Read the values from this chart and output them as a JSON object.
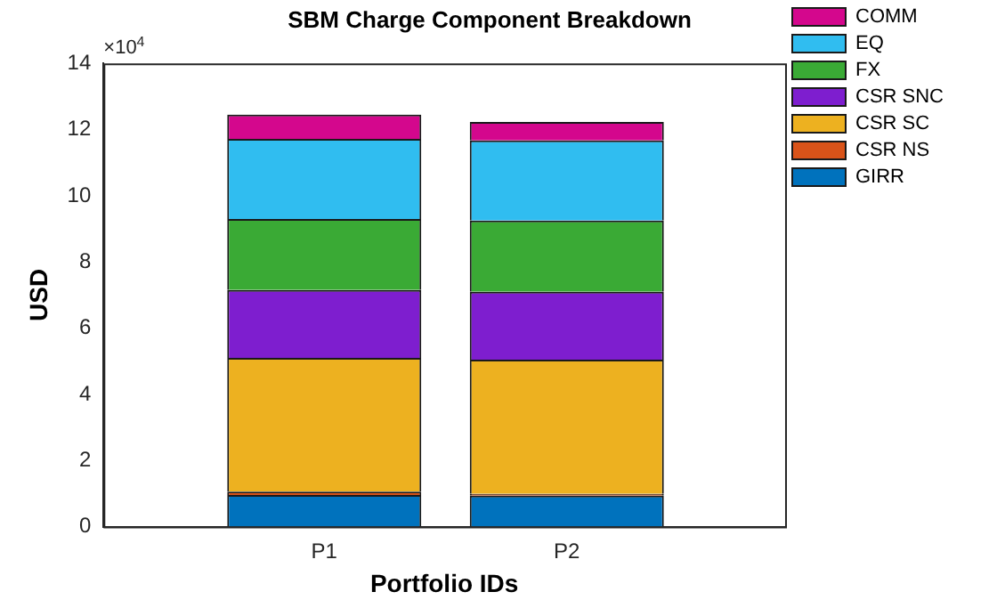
{
  "chart_data": {
    "type": "bar",
    "title": "SBM Charge Component Breakdown",
    "xlabel": "Portfolio IDs",
    "ylabel": "USD",
    "categories": [
      "P1",
      "P2"
    ],
    "stacked": true,
    "series": [
      {
        "name": "GIRR",
        "color": "#0072bd",
        "values": [
          0.96,
          0.94
        ]
      },
      {
        "name": "CSR NS",
        "color": "#d95319",
        "values": [
          0.1,
          0.05
        ]
      },
      {
        "name": "CSR SC",
        "color": "#edb120",
        "values": [
          4.04,
          4.06
        ]
      },
      {
        "name": "CSR SNC",
        "color": "#7e1ecf",
        "values": [
          2.05,
          2.05
        ]
      },
      {
        "name": "FX",
        "color": "#3aaa35",
        "values": [
          2.15,
          2.15
        ]
      },
      {
        "name": "EQ",
        "color": "#30bdf0",
        "values": [
          2.42,
          2.42
        ]
      },
      {
        "name": "COMM",
        "color": "#d4078d",
        "values": [
          0.73,
          0.56
        ]
      }
    ],
    "ylim": [
      0,
      14
    ],
    "yticks": [
      0,
      2,
      4,
      6,
      8,
      10,
      12,
      14
    ],
    "annotations": [
      "×10$^{4}$"
    ],
    "grid": false,
    "legend": "top right"
  }
}
